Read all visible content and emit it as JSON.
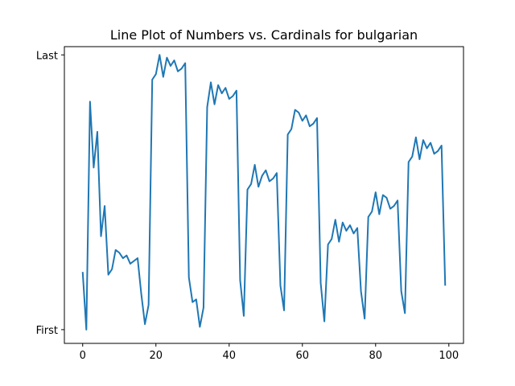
{
  "chart_data": {
    "type": "line",
    "title": "Line Plot of Numbers vs. Cardinals for bulgarian",
    "xlabel": "",
    "ylabel": "",
    "xlim": [
      -5,
      104
    ],
    "ylim": [
      -0.05,
      1.03
    ],
    "x_ticks": [
      0,
      20,
      40,
      60,
      80,
      100
    ],
    "y_ticks": [
      {
        "value": 0,
        "label": "First"
      },
      {
        "value": 1,
        "label": "Last"
      }
    ],
    "grid": false,
    "color": "#1f77b4",
    "series": [
      {
        "values": [
          0.21,
          0,
          0.83,
          0.59,
          0.72,
          0.34,
          0.45,
          0.2,
          0.22,
          0.29,
          0.28,
          0.26,
          0.27,
          0.24,
          0.25,
          0.26,
          0.13,
          0.02,
          0.09,
          0.91,
          0.93,
          1.0,
          0.92,
          0.99,
          0.96,
          0.98,
          0.94,
          0.95,
          0.97,
          0.19,
          0.1,
          0.11,
          0.01,
          0.08,
          0.81,
          0.9,
          0.82,
          0.89,
          0.86,
          0.88,
          0.84,
          0.85,
          0.87,
          0.18,
          0.05,
          0.51,
          0.53,
          0.6,
          0.52,
          0.56,
          0.58,
          0.54,
          0.55,
          0.57,
          0.16,
          0.07,
          0.71,
          0.73,
          0.8,
          0.79,
          0.76,
          0.78,
          0.74,
          0.75,
          0.77,
          0.17,
          0.03,
          0.31,
          0.33,
          0.4,
          0.32,
          0.39,
          0.36,
          0.38,
          0.35,
          0.37,
          0.14,
          0.04,
          0.41,
          0.43,
          0.5,
          0.42,
          0.49,
          0.48,
          0.44,
          0.45,
          0.47,
          0.14,
          0.06,
          0.61,
          0.63,
          0.7,
          0.62,
          0.69,
          0.66,
          0.68,
          0.64,
          0.65,
          0.67,
          0.16
        ]
      }
    ]
  }
}
